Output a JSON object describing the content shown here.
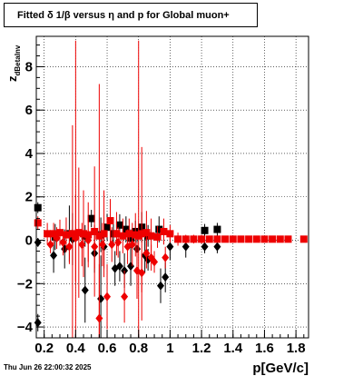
{
  "title": "Fitted δ 1/β versus η and p for Global muon+",
  "timestamp": "Thu Jun 26 22:00:32 2025",
  "chart_data": {
    "type": "scatter",
    "title": "Fitted δ 1/β versus η and p for Global muon+",
    "xlabel": "p[GeV/c]",
    "ylabel": "z",
    "ylabel_sub": "dBetaInv",
    "xlim": [
      0.15,
      1.88
    ],
    "ylim": [
      -4.5,
      9.4
    ],
    "grid": true,
    "x_ticks": [
      "0.2",
      "0.4",
      "0.6",
      "0.8",
      "1",
      "1.2",
      "1.4",
      "1.6",
      "1.8"
    ],
    "x_tick_values": [
      0.2,
      0.4,
      0.6,
      0.8,
      1.0,
      1.2,
      1.4,
      1.6,
      1.8
    ],
    "y_ticks": [
      "−4",
      "−2",
      "0",
      "2",
      "4",
      "6",
      "8"
    ],
    "y_tick_values": [
      -4,
      -2,
      0,
      2,
      4,
      6,
      8
    ],
    "colors": {
      "black": "#000000",
      "red": "#ee0000"
    },
    "series": [
      {
        "color": "#000000",
        "marker": "square",
        "points": [
          [
            0.16,
            1.5,
            0.25
          ],
          [
            0.27,
            0.15,
            0.6
          ],
          [
            0.36,
            0.3,
            1.3
          ],
          [
            0.46,
            0.2,
            0.5
          ],
          [
            0.5,
            1.0,
            0.4
          ],
          [
            0.56,
            0.25,
            0.8
          ],
          [
            0.6,
            0.6,
            0.6
          ],
          [
            0.64,
            0.3,
            0.5
          ],
          [
            0.68,
            0.7,
            0.5
          ],
          [
            0.72,
            0.5,
            0.6
          ],
          [
            0.75,
            0.1,
            0.4
          ],
          [
            0.78,
            0.4,
            0.5
          ],
          [
            0.82,
            0.6,
            0.7
          ],
          [
            0.86,
            0.2,
            0.5
          ],
          [
            0.93,
            0.5,
            0.6
          ],
          [
            1.22,
            0.45,
            0.3
          ],
          [
            1.3,
            0.5,
            0.3
          ]
        ]
      },
      {
        "color": "#000000",
        "marker": "diamond",
        "points": [
          [
            0.16,
            -0.1,
            0.2
          ],
          [
            0.16,
            -3.8,
            0.4
          ],
          [
            0.26,
            -0.7,
            0.8
          ],
          [
            0.33,
            -0.4,
            0.9
          ],
          [
            0.38,
            0.05,
            1.2
          ],
          [
            0.46,
            -2.3,
            1.5
          ],
          [
            0.52,
            -0.6,
            0.9
          ],
          [
            0.56,
            -2.7,
            2.0
          ],
          [
            0.58,
            -0.3,
            1.0
          ],
          [
            0.65,
            -1.3,
            0.8
          ],
          [
            0.68,
            -1.2,
            0.7
          ],
          [
            0.71,
            -1.4,
            0.8
          ],
          [
            0.75,
            -1.2,
            0.9
          ],
          [
            0.79,
            -0.4,
            0.7
          ],
          [
            0.84,
            -0.7,
            0.8
          ],
          [
            0.86,
            -0.9,
            0.5
          ],
          [
            0.94,
            -2.1,
            0.8
          ],
          [
            0.97,
            -1.7,
            0.7
          ],
          [
            1.0,
            -0.3,
            0.6
          ],
          [
            1.1,
            -0.3,
            0.5
          ],
          [
            1.22,
            -0.3,
            0.3
          ],
          [
            1.3,
            -0.3,
            0.3
          ]
        ]
      },
      {
        "color": "#ee0000",
        "marker": "square",
        "points": [
          [
            0.16,
            0.8,
            0.3
          ],
          [
            0.22,
            0.3,
            0.5
          ],
          [
            0.26,
            0.3,
            0.5
          ],
          [
            0.3,
            0.35,
            0.6
          ],
          [
            0.34,
            0.25,
            0.8
          ],
          [
            0.38,
            0.3,
            5.0
          ],
          [
            0.4,
            0.2,
            9.0
          ],
          [
            0.42,
            0.35,
            3.0
          ],
          [
            0.45,
            0.3,
            2.0
          ],
          [
            0.48,
            0.25,
            1.5
          ],
          [
            0.52,
            0.4,
            3.0
          ],
          [
            0.55,
            0.2,
            7.0
          ],
          [
            0.58,
            0.3,
            2.0
          ],
          [
            0.62,
            0.9,
            1.0
          ],
          [
            0.66,
            0.3,
            1.0
          ],
          [
            0.7,
            0.2,
            0.8
          ],
          [
            0.74,
            0.3,
            0.7
          ],
          [
            0.78,
            0.25,
            1.0
          ],
          [
            0.8,
            0.2,
            9.0
          ],
          [
            0.82,
            0.3,
            4.0
          ],
          [
            0.85,
            0.35,
            1.0
          ],
          [
            0.88,
            0.2,
            0.8
          ],
          [
            0.92,
            0.15,
            0.5
          ],
          [
            0.96,
            0.4,
            0.6
          ],
          [
            1.0,
            0.3,
            0.4
          ],
          [
            1.05,
            0.05,
            0.3
          ],
          [
            1.1,
            0.05,
            0.2
          ],
          [
            1.15,
            0.05,
            0.2
          ],
          [
            1.2,
            0.05,
            0.2
          ],
          [
            1.25,
            0.05,
            0.15
          ],
          [
            1.3,
            0.05,
            0.15
          ],
          [
            1.35,
            0.05,
            0.1
          ],
          [
            1.4,
            0.05,
            0.1
          ],
          [
            1.45,
            0.05,
            0.1
          ],
          [
            1.5,
            0.05,
            0.1
          ],
          [
            1.55,
            0.05,
            0.1
          ],
          [
            1.6,
            0.05,
            0.1
          ],
          [
            1.65,
            0.05,
            0.1
          ],
          [
            1.7,
            0.05,
            0.1
          ],
          [
            1.75,
            0.05,
            0.1
          ],
          [
            1.85,
            0.05,
            0.1
          ]
        ]
      },
      {
        "color": "#ee0000",
        "marker": "diamond",
        "points": [
          [
            0.24,
            -0.2,
            0.4
          ],
          [
            0.28,
            0.1,
            0.5
          ],
          [
            0.32,
            -0.1,
            0.6
          ],
          [
            0.36,
            -0.3,
            0.8
          ],
          [
            0.4,
            0.1,
            2.0
          ],
          [
            0.44,
            -0.2,
            1.0
          ],
          [
            0.48,
            0.0,
            1.0
          ],
          [
            0.52,
            -0.3,
            1.0
          ],
          [
            0.55,
            -3.6,
            2.5
          ],
          [
            0.57,
            -0.2,
            1.0
          ],
          [
            0.6,
            -2.6,
            1.5
          ],
          [
            0.63,
            -0.2,
            0.8
          ],
          [
            0.67,
            -0.1,
            0.7
          ],
          [
            0.71,
            -2.6,
            1.2
          ],
          [
            0.73,
            -0.3,
            0.8
          ],
          [
            0.76,
            -0.2,
            1.0
          ],
          [
            0.79,
            -1.4,
            1.3
          ],
          [
            0.82,
            -1.5,
            0.9
          ],
          [
            0.85,
            -0.6,
            0.7
          ],
          [
            0.88,
            -0.8,
            0.6
          ],
          [
            0.9,
            -1.0,
            0.5
          ],
          [
            0.97,
            -0.8,
            0.5
          ]
        ]
      }
    ]
  }
}
